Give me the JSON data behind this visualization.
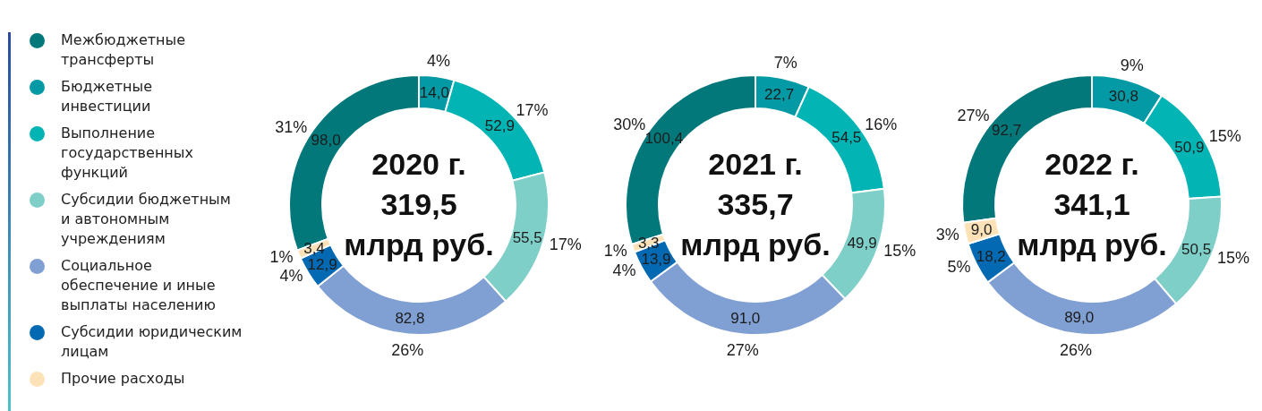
{
  "chart_data": [
    {
      "type": "donut",
      "title": "2020 г.",
      "subtitle": "319,5 млрд руб.",
      "categories": [
        "Межбюджетные трансферты",
        "Бюджетные инвестиции",
        "Выполнение государственных функций",
        "Субсидии бюджетным и автономным учреждениям",
        "Социальное обеспечение и иные выплаты населению",
        "Субсидии юридическим лицам",
        "Прочие расходы"
      ],
      "values": [
        98.0,
        14.0,
        52.9,
        55.5,
        82.8,
        12.9,
        3.4
      ],
      "colors": [
        "#02787b",
        "#0399a5",
        "#03b4b4",
        "#7fcfc9",
        "#809fd3",
        "#0469b3",
        "#fde2b8"
      ],
      "value_labels": [
        "98,0",
        "14,0",
        "52,9",
        "55,5",
        "82,8",
        "12,9",
        "3,4"
      ],
      "annotations": [
        "31%",
        "4%",
        "17%",
        "17%",
        "26%",
        "4%",
        "1%"
      ],
      "legend": "left"
    },
    {
      "type": "donut",
      "title": "2021 г.",
      "subtitle": "335,7 млрд руб.",
      "categories": [
        null,
        null,
        null,
        null,
        null,
        null,
        null
      ],
      "values": [
        100.4,
        22.7,
        54.5,
        49.9,
        91.0,
        13.9,
        3.3
      ],
      "colors": [
        "#02787b",
        "#0399a5",
        "#03b4b4",
        "#7fcfc9",
        "#809fd3",
        "#0469b3",
        "#fde2b8"
      ],
      "value_labels": [
        "100,4",
        "22,7",
        "54,5",
        "49,9",
        "91,0",
        "13,9",
        "3,3"
      ],
      "annotations": [
        "30%",
        "7%",
        "16%",
        "15%",
        "27%",
        "4%",
        "1%"
      ]
    },
    {
      "type": "donut",
      "title": "2022 г.",
      "subtitle": "341,1 млрд руб.",
      "categories": [
        null,
        null,
        null,
        null,
        null,
        null,
        null
      ],
      "values": [
        92.7,
        30.8,
        50.9,
        50.5,
        89.0,
        18.2,
        9.0
      ],
      "colors": [
        "#02787b",
        "#0399a5",
        "#03b4b4",
        "#7fcfc9",
        "#809fd3",
        "#0469b3",
        "#fde2b8"
      ],
      "value_labels": [
        "92,7",
        "30,8",
        "50,9",
        "50,5",
        "89,0",
        "18,2",
        "9,0"
      ],
      "annotations": [
        "27%",
        "9%",
        "15%",
        "15%",
        "26%",
        "5%",
        "3%"
      ]
    }
  ]
}
